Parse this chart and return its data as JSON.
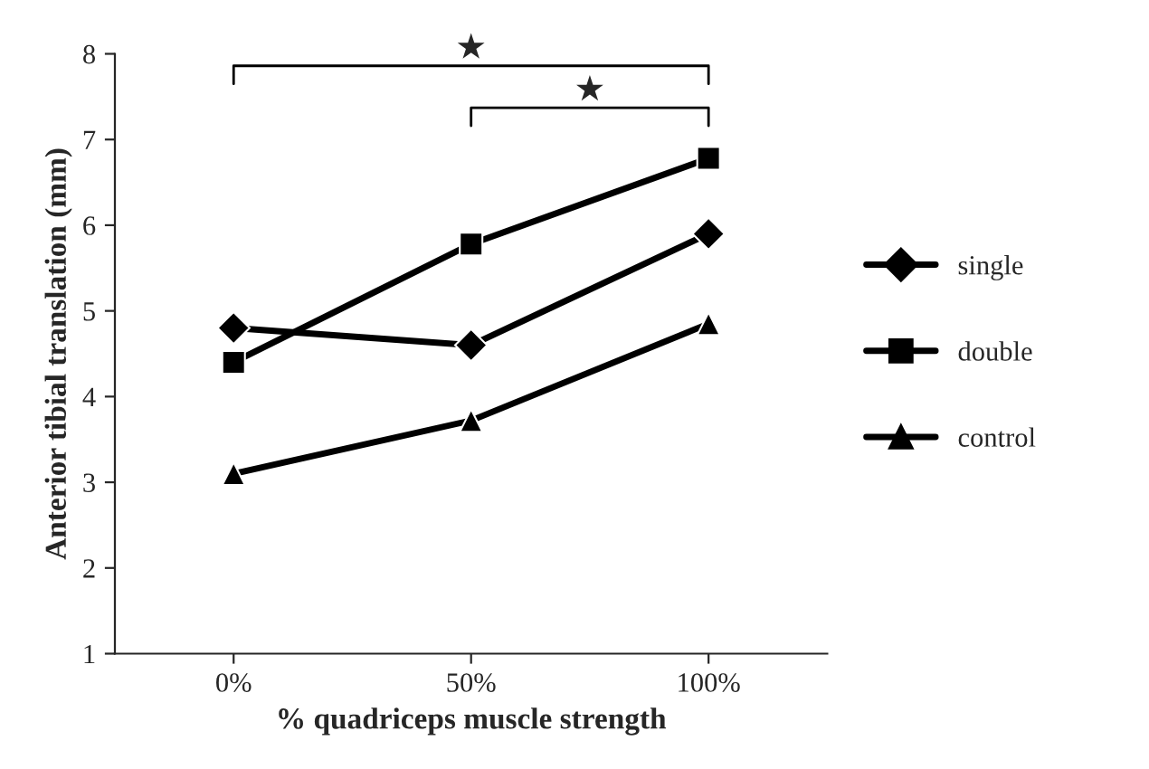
{
  "chart_data": {
    "type": "line",
    "xlabel": "% quadriceps muscle strength",
    "ylabel": "Anterior tibial translation (mm)",
    "categories": [
      "0%",
      "50%",
      "100%"
    ],
    "series": [
      {
        "name": "single",
        "color": "#000000",
        "values": [
          4.8,
          4.6,
          5.9
        ],
        "marker": "diamond"
      },
      {
        "name": "double",
        "color": "#000000",
        "values": [
          4.4,
          5.78,
          6.78
        ],
        "marker": "square"
      },
      {
        "name": "control",
        "color": "#000000",
        "values": [
          3.1,
          3.72,
          4.85
        ],
        "marker": "triangle"
      }
    ],
    "ylim": [
      1,
      8
    ],
    "yticks": [
      1,
      2,
      3,
      4,
      5,
      6,
      7,
      8
    ],
    "grid": false,
    "legend": "right",
    "line_style": "solid",
    "annotations": [
      "★",
      "★"
    ]
  }
}
